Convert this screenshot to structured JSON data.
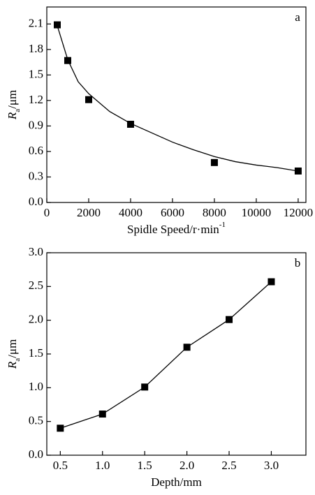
{
  "chart_data": [
    {
      "type": "scatter",
      "panel_label": "a",
      "xlabel": "Spidle Speed/r·min",
      "xlabel_superscript": "-1",
      "ylabel": "R",
      "ylabel_subscript": "a",
      "ylabel_unit": "/μm",
      "x": [
        500,
        1000,
        2000,
        4000,
        8000,
        12000
      ],
      "values": [
        2.09,
        1.67,
        1.21,
        0.92,
        0.47,
        0.37
      ],
      "color": "#000000",
      "fit_curve": {
        "x": [
          500,
          1000,
          1500,
          2000,
          3000,
          4000,
          5000,
          6000,
          7000,
          8000,
          9000,
          10000,
          11000,
          12000
        ],
        "y": [
          2.08,
          1.68,
          1.42,
          1.28,
          1.07,
          0.93,
          0.82,
          0.71,
          0.62,
          0.54,
          0.48,
          0.44,
          0.41,
          0.37
        ]
      },
      "xlim": [
        0,
        12370
      ],
      "xticks": [
        0,
        2000,
        4000,
        6000,
        8000,
        10000,
        12000
      ],
      "ylim": [
        0,
        2.3
      ],
      "yticks": [
        {
          "value": 0,
          "label": "0.0"
        },
        0.3,
        0.6,
        0.9,
        1.2,
        1.5,
        1.8,
        2.1
      ]
    },
    {
      "type": "line",
      "panel_label": "b",
      "xlabel": "Depth/mm",
      "ylabel": "R",
      "ylabel_subscript": "a",
      "ylabel_unit": "/μm",
      "x": [
        0.5,
        1.0,
        1.5,
        2.0,
        2.5,
        3.0
      ],
      "values": [
        0.4,
        0.61,
        1.01,
        1.6,
        2.01,
        2.57
      ],
      "color": "#000000",
      "xlim": [
        0.34,
        3.41
      ],
      "xticks": [
        0.5,
        {
          "value": 1,
          "label": "1.0"
        },
        1.5,
        {
          "value": 2,
          "label": "2.0"
        },
        2.5,
        {
          "value": 3,
          "label": "3.0"
        }
      ],
      "ylim": [
        0,
        3
      ],
      "yticks": [
        {
          "value": 0,
          "label": "0.0"
        },
        0.5,
        {
          "value": 1,
          "label": "1.0"
        },
        1.5,
        {
          "value": 2,
          "label": "2.0"
        },
        2.5,
        {
          "value": 3,
          "label": "3.0"
        }
      ]
    }
  ]
}
